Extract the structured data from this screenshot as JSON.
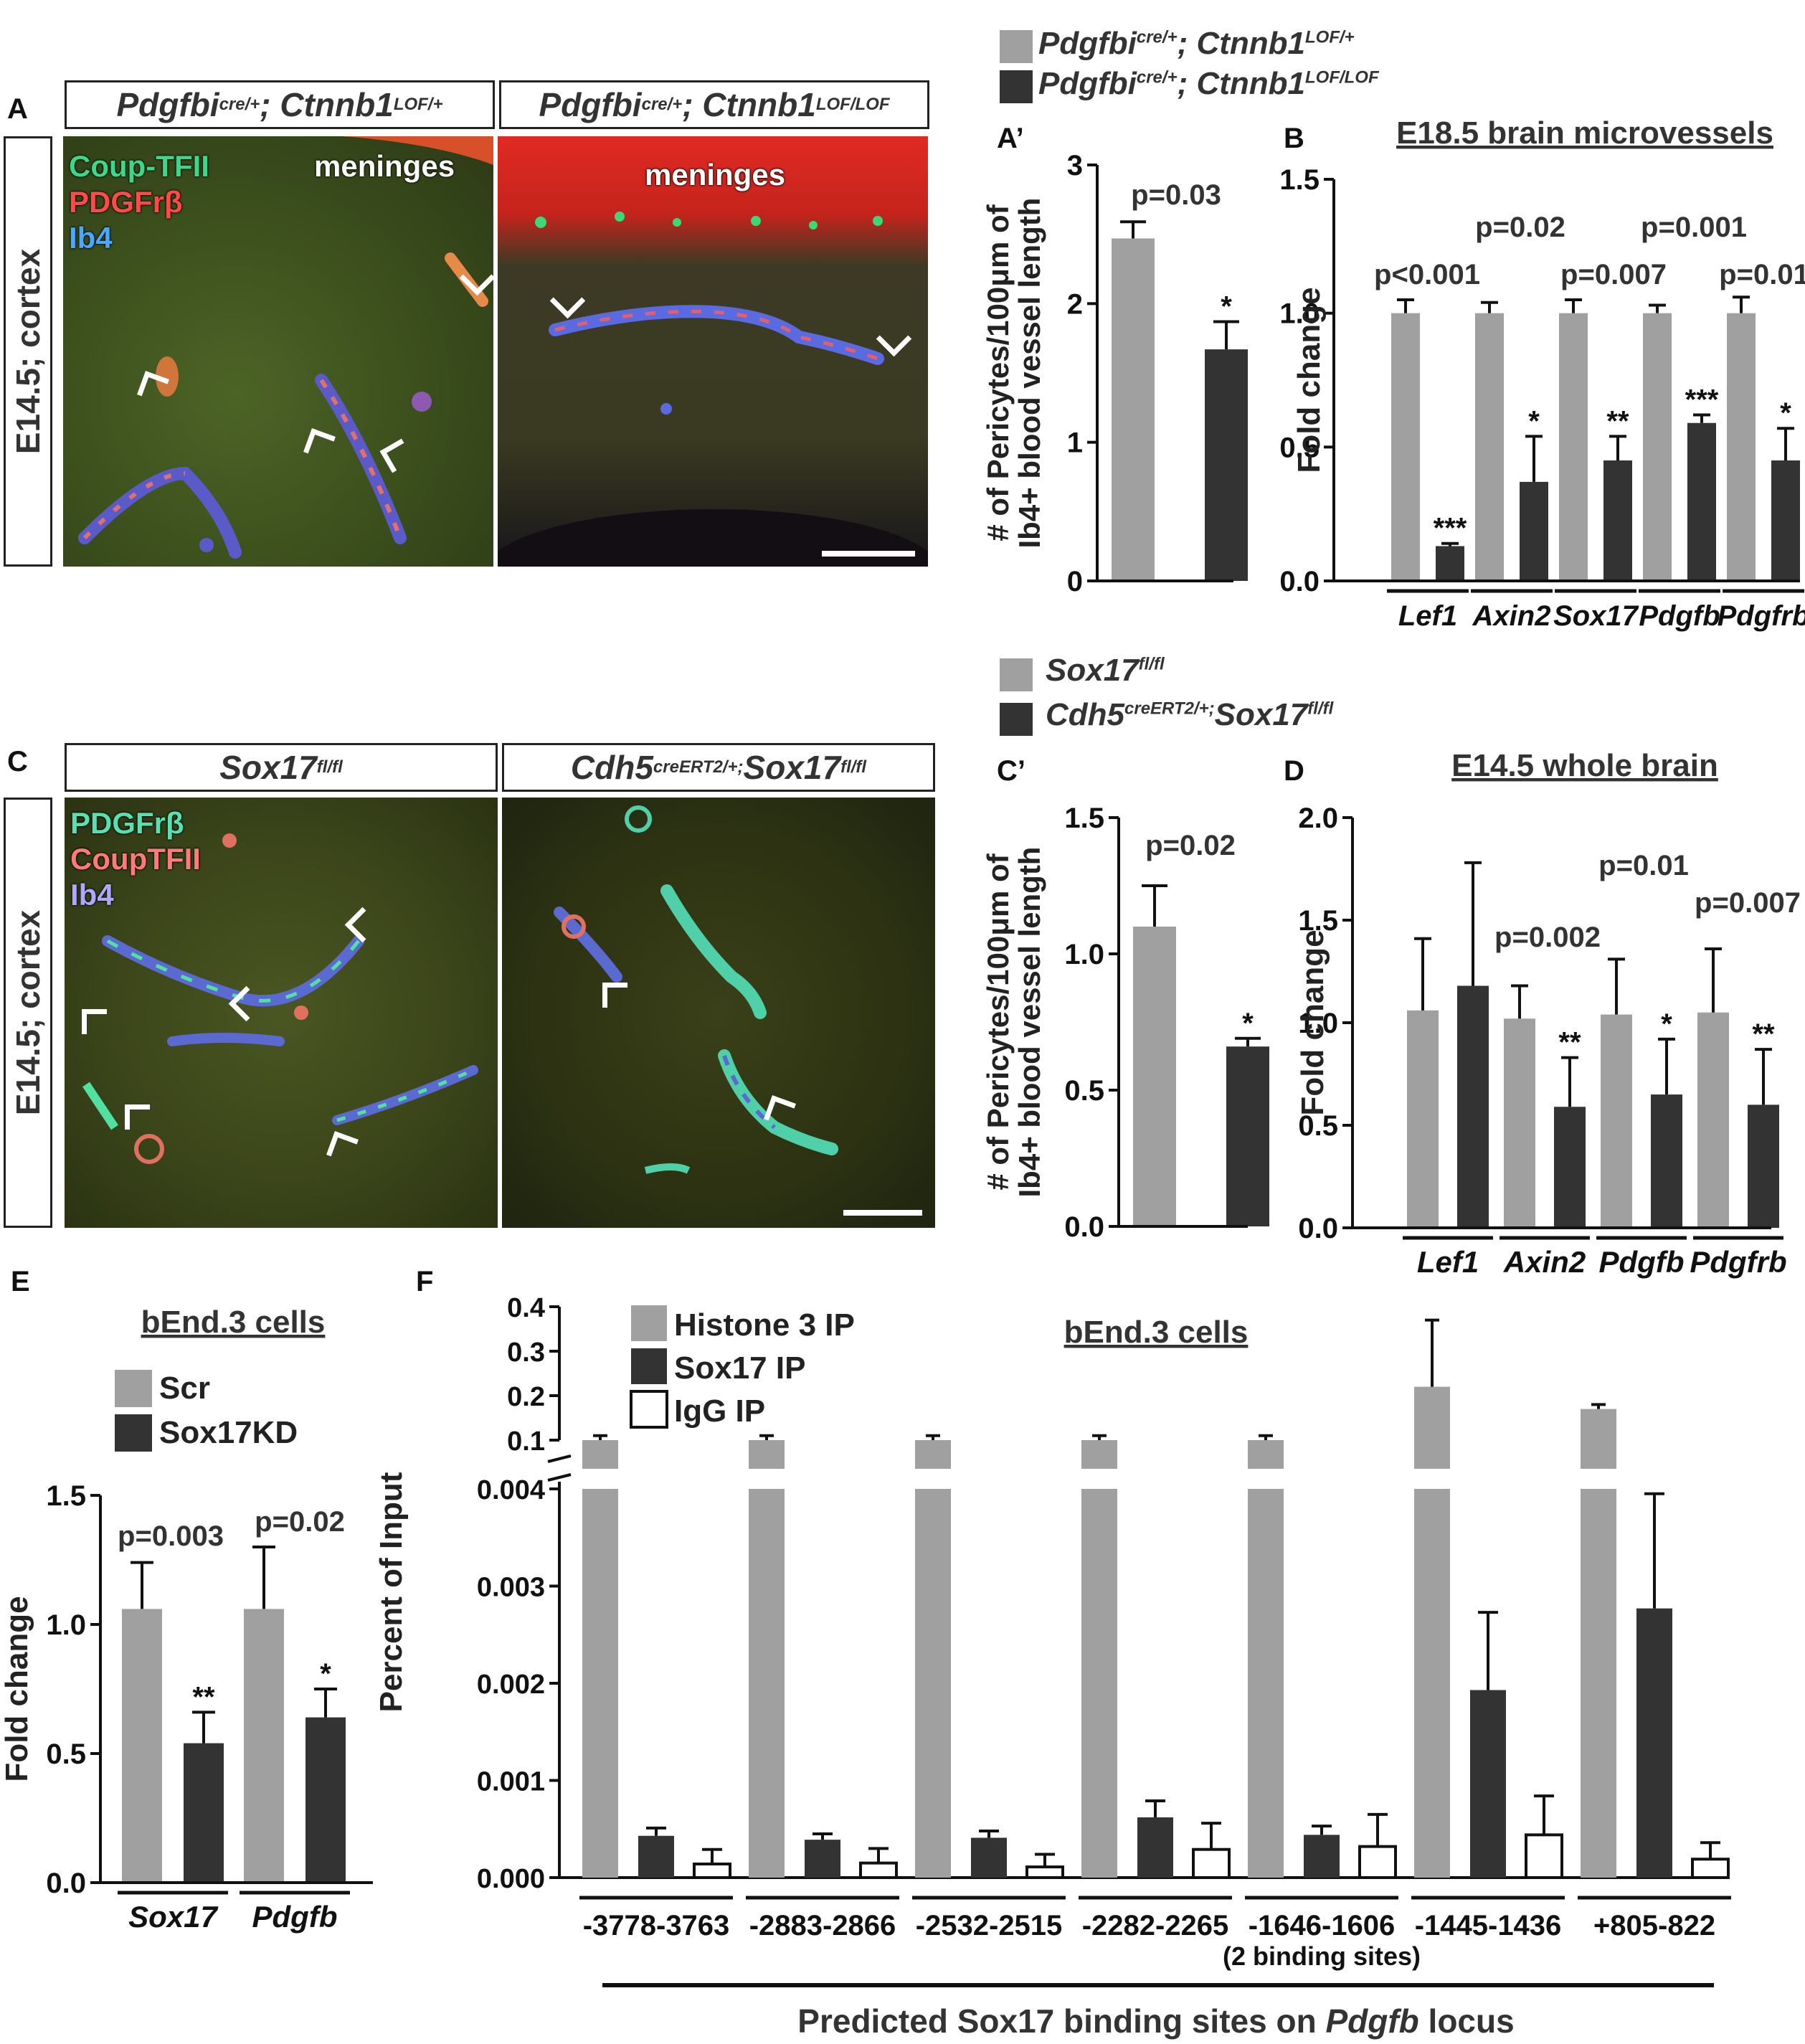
{
  "panels": {
    "A": {
      "label": "A",
      "side": "E14.5; cortex",
      "header_left": {
        "gene1": "Pdgfbi",
        "sup1": "cre/+",
        "gene2": "; Ctnnb1",
        "sup2": "LOF/+"
      },
      "header_right": {
        "gene1": "Pdgfbi",
        "sup1": "cre/+",
        "gene2": "; Ctnnb1",
        "sup2": "LOF/LOF"
      },
      "stain1": "Coup-TFII",
      "stain2": "PDGFrβ",
      "stain3": "Ib4",
      "meninges": "meninges",
      "colors": {
        "stain1": "#3ed68a",
        "stain2": "#ff4a4a",
        "stain3": "#4aa8ff"
      }
    },
    "C": {
      "label": "C",
      "side": "E14.5; cortex",
      "header_left": {
        "gene1": "Sox17",
        "sup1": "fl/fl"
      },
      "header_right": {
        "gene1": "Cdh5",
        "sup1": "creERT2/+;",
        "gene2": "Sox17",
        "sup2": "fl/fl"
      },
      "stain1": "PDGFrβ",
      "stain2": "CoupTFII",
      "stain3": "Ib4",
      "colors": {
        "stain1": "#58e0b0",
        "stain2": "#ff7a7a",
        "stain3": "#b0a8ff"
      }
    }
  },
  "legends": {
    "top": [
      {
        "gene1": "Pdgfbi",
        "sup1": "cre/+",
        "gene2": "; Ctnnb1",
        "sup2": "LOF/+",
        "color": "#a0a0a0"
      },
      {
        "gene1": "Pdgfbi",
        "sup1": "cre/+",
        "gene2": "; Ctnnb1",
        "sup2": "LOF/LOF",
        "color": "#333333"
      }
    ],
    "mid": [
      {
        "gene1": "Sox17",
        "sup1": "fl/fl",
        "color": "#a0a0a0"
      },
      {
        "gene1": "Cdh5",
        "sup1": "creERT2/+;",
        "gene2": "Sox17",
        "sup2": "fl/fl",
        "color": "#333333"
      }
    ]
  },
  "chart_data": [
    {
      "id": "A-prime",
      "panel_label": "A’",
      "type": "bar",
      "ylabel_line1": "# of Pericytes/100μm of",
      "ylabel_line2": "Ib4+ blood vessel length",
      "ylim": [
        0,
        3
      ],
      "yticks": [
        "0",
        "1",
        "2",
        "3"
      ],
      "series": [
        {
          "color": "#a0a0a0",
          "values": [
            2.47
          ],
          "errors": [
            0.12
          ]
        },
        {
          "color": "#333333",
          "values": [
            1.67
          ],
          "errors": [
            0.2
          ],
          "stars": [
            "*"
          ]
        }
      ],
      "pvalues": [
        "p=0.03"
      ]
    },
    {
      "id": "B",
      "panel_label": "B",
      "type": "bar",
      "title": "E18.5 brain microvessels",
      "ylabel": "Fold change",
      "ylim": [
        0,
        1.5
      ],
      "yticks": [
        "0.0",
        "0.5",
        "1.0",
        "1.5"
      ],
      "categories": [
        "Lef1",
        "Axin2",
        "Sox17",
        "Pdgfb",
        "Pdgfrb"
      ],
      "series": [
        {
          "color": "#a0a0a0",
          "values": [
            1.0,
            1.0,
            1.0,
            1.0,
            1.0
          ],
          "errors": [
            0.05,
            0.04,
            0.05,
            0.03,
            0.06
          ]
        },
        {
          "color": "#333333",
          "values": [
            0.13,
            0.37,
            0.45,
            0.59,
            0.45
          ],
          "errors": [
            0.01,
            0.17,
            0.09,
            0.03,
            0.12
          ],
          "stars": [
            "***",
            "*",
            "**",
            "***",
            "*"
          ]
        }
      ],
      "pvalues": [
        "p<0.001",
        "p=0.02",
        "p=0.007",
        "p=0.001",
        "p=0.01"
      ]
    },
    {
      "id": "C-prime",
      "panel_label": "C’",
      "type": "bar",
      "ylabel_line1": "# of Pericytes/100μm of",
      "ylabel_line2": "Ib4+ blood vessel length",
      "ylim": [
        0,
        1.5
      ],
      "yticks": [
        "0.0",
        "0.5",
        "1.0",
        "1.5"
      ],
      "series": [
        {
          "color": "#a0a0a0",
          "values": [
            1.1
          ],
          "errors": [
            0.15
          ]
        },
        {
          "color": "#333333",
          "values": [
            0.66
          ],
          "errors": [
            0.03
          ],
          "stars": [
            "*"
          ]
        }
      ],
      "pvalues": [
        "p=0.02"
      ]
    },
    {
      "id": "D",
      "panel_label": "D",
      "type": "bar",
      "title": "E14.5 whole brain",
      "ylabel": "Fold change",
      "ylim": [
        0,
        2.0
      ],
      "yticks": [
        "0.0",
        "0.5",
        "1.0",
        "1.5",
        "2.0"
      ],
      "categories": [
        "Lef1",
        "Axin2",
        "Pdgfb",
        "Pdgfrb"
      ],
      "series": [
        {
          "color": "#a0a0a0",
          "values": [
            1.06,
            1.02,
            1.04,
            1.05
          ],
          "errors": [
            0.35,
            0.16,
            0.27,
            0.31
          ]
        },
        {
          "color": "#333333",
          "values": [
            1.18,
            0.59,
            0.65,
            0.6
          ],
          "errors": [
            0.6,
            0.24,
            0.27,
            0.27
          ],
          "stars": [
            "",
            "**",
            "*",
            "**"
          ]
        }
      ],
      "pvalues": [
        "",
        "p=0.002",
        "p=0.01",
        "p=0.007"
      ]
    },
    {
      "id": "E",
      "panel_label": "E",
      "type": "bar",
      "title": "bEnd.3 cells",
      "ylabel": "Fold change",
      "ylim": [
        0,
        1.5
      ],
      "yticks": [
        "0.0",
        "0.5",
        "1.0",
        "1.5"
      ],
      "categories": [
        "Sox17",
        "Pdgfb"
      ],
      "series": [
        {
          "name": "Scr",
          "color": "#a0a0a0",
          "values": [
            1.06,
            1.06
          ],
          "errors": [
            0.18,
            0.24
          ]
        },
        {
          "name": "Sox17KD",
          "color": "#333333",
          "values": [
            0.54,
            0.64
          ],
          "errors": [
            0.12,
            0.11
          ],
          "stars": [
            "**",
            "*"
          ]
        }
      ],
      "pvalues": [
        "p=0.003",
        "p=0.02"
      ]
    },
    {
      "id": "F",
      "panel_label": "F",
      "type": "bar",
      "title": "bEnd.3 cells",
      "ylabel": "Percent of Input",
      "xlabel_prefix": "Predicted Sox17 binding sites on ",
      "xlabel_italic": "Pdgfb",
      "xlabel_suffix": " locus",
      "scale": "broken y axis",
      "yticks_lower": [
        "0.000",
        "0.001",
        "0.002",
        "0.003",
        "0.004"
      ],
      "yticks_upper": [
        "0.1",
        "0.2",
        "0.3",
        "0.4"
      ],
      "categories": [
        "-3778-3763",
        "-2883-2866",
        "-2532-2515",
        "-2282-2265",
        "-1646-1606",
        "-1445-1436",
        "+805-822"
      ],
      "category_note": "(2 binding sites)",
      "series": [
        {
          "name": "Histone 3 IP",
          "color": "#a0a0a0",
          "values": [
            0.06,
            0.055,
            0.055,
            0.08,
            0.08,
            0.22,
            0.17
          ],
          "errors": [
            0.01,
            0.01,
            0.01,
            0.01,
            0.01,
            0.15,
            0.01
          ]
        },
        {
          "name": "Sox17 IP",
          "color": "#333333",
          "values": [
            0.00043,
            0.00039,
            0.00041,
            0.00062,
            0.00044,
            0.00193,
            0.00277
          ],
          "errors": [
            8e-05,
            6e-05,
            7e-05,
            0.00017,
            9e-05,
            0.0008,
            0.00118
          ]
        },
        {
          "name": "IgG IP",
          "color": "#ffffff",
          "values": [
            0.00014,
            0.00015,
            0.00011,
            0.00029,
            0.00032,
            0.00044,
            0.00019
          ],
          "errors": [
            0.00015,
            0.00015,
            0.00013,
            0.00027,
            0.00033,
            0.0004,
            0.00017
          ]
        }
      ]
    }
  ]
}
